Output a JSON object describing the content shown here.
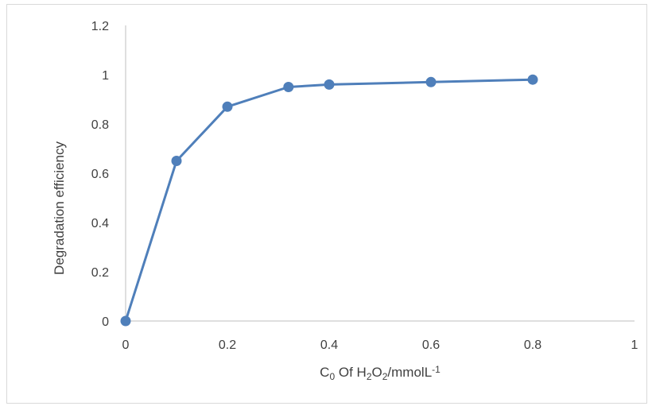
{
  "chart_data": {
    "type": "line",
    "title": "",
    "xlabel": {
      "parts": [
        {
          "text": "C",
          "style": "normal"
        },
        {
          "text": "0",
          "style": "sub"
        },
        {
          "text": " Of H",
          "style": "normal"
        },
        {
          "text": "2",
          "style": "sub"
        },
        {
          "text": "O",
          "style": "normal"
        },
        {
          "text": "2",
          "style": "sub"
        },
        {
          "text": "/mmolL",
          "style": "normal"
        },
        {
          "text": "-1",
          "style": "sup"
        }
      ]
    },
    "ylabel": "Degradation efficiency",
    "xlim": [
      0,
      1
    ],
    "ylim": [
      0,
      1.2
    ],
    "x_ticks": [
      "0",
      "0.2",
      "0.4",
      "0.6",
      "0.8",
      "1"
    ],
    "x_tick_values": [
      0,
      0.2,
      0.4,
      0.6,
      0.8,
      1
    ],
    "y_ticks": [
      "0",
      "0.2",
      "0.4",
      "0.6",
      "0.8",
      "1",
      "1.2"
    ],
    "y_tick_values": [
      0,
      0.2,
      0.4,
      0.6,
      0.8,
      1,
      1.2
    ],
    "grid": false,
    "legend": "none",
    "series": [
      {
        "color": "#4f7fba",
        "marker": "circle",
        "x": [
          0,
          0.1,
          0.2,
          0.32,
          0.4,
          0.6,
          0.8
        ],
        "y": [
          0,
          0.65,
          0.87,
          0.95,
          0.96,
          0.97,
          0.98
        ]
      }
    ],
    "axis_color": "#bfbfbf"
  }
}
